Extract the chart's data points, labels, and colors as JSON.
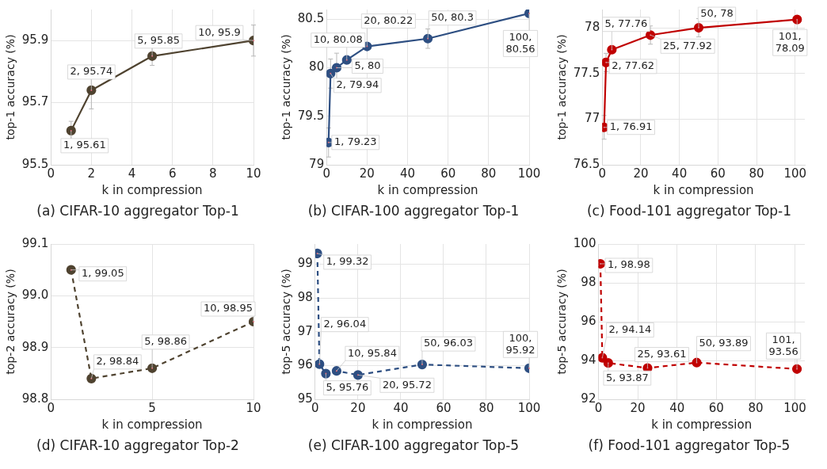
{
  "chart_data": [
    {
      "type": "line",
      "title": "(a) CIFAR-10 aggregator Top-1",
      "xlabel": "k in compression",
      "ylabel": "top-1 accuracy (%)",
      "xlim": [
        0,
        10
      ],
      "xticks": [
        0,
        2,
        4,
        6,
        8,
        10
      ],
      "ylim": [
        95.5,
        96.0
      ],
      "yticks": [
        95.5,
        95.7,
        95.9
      ],
      "grid": true,
      "legend": false,
      "marker": "circle",
      "line_style": "solid",
      "series": [
        {
          "color": "#4f4330",
          "x": [
            1,
            2,
            5,
            10
          ],
          "values": [
            95.61,
            95.74,
            95.85,
            95.9
          ],
          "errors": [
            0.03,
            0.06,
            0.03,
            0.05
          ],
          "value_labels": [
            "1, 95.61",
            "2, 95.74",
            "5, 95.85",
            "10, 95.9"
          ]
        }
      ]
    },
    {
      "type": "line",
      "title": "(b) CIFAR-100 aggregator Top-1",
      "xlabel": "k in compression",
      "ylabel": "top-1 accuracy (%)",
      "xlim": [
        0,
        100
      ],
      "xticks": [
        0,
        20,
        40,
        60,
        80,
        100
      ],
      "ylim": [
        79,
        80.6
      ],
      "yticks": [
        79,
        79.5,
        80,
        80.5
      ],
      "grid": true,
      "legend": false,
      "marker": "circle",
      "line_style": "solid",
      "series": [
        {
          "color": "#2e4f82",
          "x": [
            1,
            2,
            5,
            10,
            20,
            50,
            100
          ],
          "values": [
            79.23,
            79.94,
            80,
            80.08,
            80.22,
            80.3,
            80.56
          ],
          "errors": [
            0.15,
            0.15,
            0.15,
            null,
            null,
            0.1,
            null
          ],
          "value_labels": [
            "1, 79.23",
            "2, 79.94",
            "5, 80",
            "10, 80.08",
            "20, 80.22",
            "50, 80.3",
            "100, 80.56"
          ]
        }
      ]
    },
    {
      "type": "line",
      "title": "(c) Food-101 aggregator Top-1",
      "xlabel": "k in compression",
      "ylabel": "top-1 accuracy (%)",
      "xlim": [
        0,
        105
      ],
      "xticks": [
        0,
        20,
        40,
        60,
        80,
        100
      ],
      "ylim": [
        76.5,
        78.2
      ],
      "yticks": [
        76.5,
        77,
        77.5,
        78
      ],
      "grid": true,
      "legend": false,
      "marker": "circle",
      "line_style": "solid",
      "series": [
        {
          "color": "#c00000",
          "x": [
            1,
            2,
            5,
            25,
            50,
            101
          ],
          "values": [
            76.91,
            77.62,
            77.76,
            77.92,
            78,
            78.09
          ],
          "errors": [
            0.13,
            0.1,
            null,
            0.1,
            0.1,
            null
          ],
          "value_labels": [
            "1, 76.91",
            "2, 77.62",
            "5, 77.76",
            "25, 77.92",
            "50, 78",
            "101, 78.09"
          ]
        }
      ]
    },
    {
      "type": "line",
      "title": "(d) CIFAR-10 aggregator Top-2",
      "xlabel": "k in compression",
      "ylabel": "top-2 accuracy (%)",
      "xlim": [
        0,
        10
      ],
      "xticks": [
        0,
        5,
        10
      ],
      "ylim": [
        98.8,
        99.1
      ],
      "yticks": [
        98.8,
        98.9,
        {
          "value": 99,
          "label": "99.0"
        },
        99.1
      ],
      "grid": true,
      "legend": false,
      "marker": "circle",
      "line_style": "dashed",
      "series": [
        {
          "color": "#4f4330",
          "x": [
            1,
            2,
            5,
            10
          ],
          "values": [
            99.05,
            98.84,
            98.86,
            98.95
          ],
          "value_labels": [
            "1, 99.05",
            "2, 98.84",
            "5, 98.86",
            "10, 98.95"
          ]
        }
      ]
    },
    {
      "type": "line",
      "title": "(e) CIFAR-100 aggregator Top-5",
      "xlabel": "k in compression",
      "ylabel": "top-5 accuracy (%)",
      "xlim": [
        0,
        100
      ],
      "xticks": [
        0,
        20,
        40,
        60,
        80,
        100
      ],
      "ylim": [
        95,
        99.6
      ],
      "yticks": [
        95,
        96,
        97,
        98,
        99
      ],
      "grid": true,
      "legend": false,
      "marker": "circle",
      "line_style": "dashed",
      "series": [
        {
          "color": "#2e4f82",
          "x": [
            1,
            2,
            5,
            10,
            20,
            50,
            100
          ],
          "values": [
            99.32,
            96.04,
            95.76,
            95.84,
            95.72,
            96.03,
            95.92
          ],
          "value_labels": [
            "1, 99.32",
            "2, 96.04",
            "5, 95.76",
            "10, 95.84",
            "20, 95.72",
            "50, 96.03",
            "100, 95.92"
          ]
        }
      ]
    },
    {
      "type": "line",
      "title": "(f) Food-101 aggregator Top-5",
      "xlabel": "k in compression",
      "ylabel": "top-5 accuracy (%)",
      "xlim": [
        0,
        105
      ],
      "xticks": [
        0,
        20,
        40,
        60,
        80,
        100
      ],
      "ylim": [
        92,
        100
      ],
      "yticks": [
        92,
        94,
        96,
        98,
        100
      ],
      "grid": true,
      "legend": false,
      "marker": "circle",
      "line_style": "dashed",
      "series": [
        {
          "color": "#c00000",
          "x": [
            1,
            2,
            5,
            25,
            50,
            101
          ],
          "values": [
            98.98,
            94.14,
            93.87,
            93.61,
            93.89,
            93.56
          ],
          "value_labels": [
            "1, 98.98",
            "2, 94.14",
            "5, 93.87",
            "25, 93.61",
            "50, 93.89",
            "101, 93.56"
          ]
        }
      ]
    }
  ]
}
